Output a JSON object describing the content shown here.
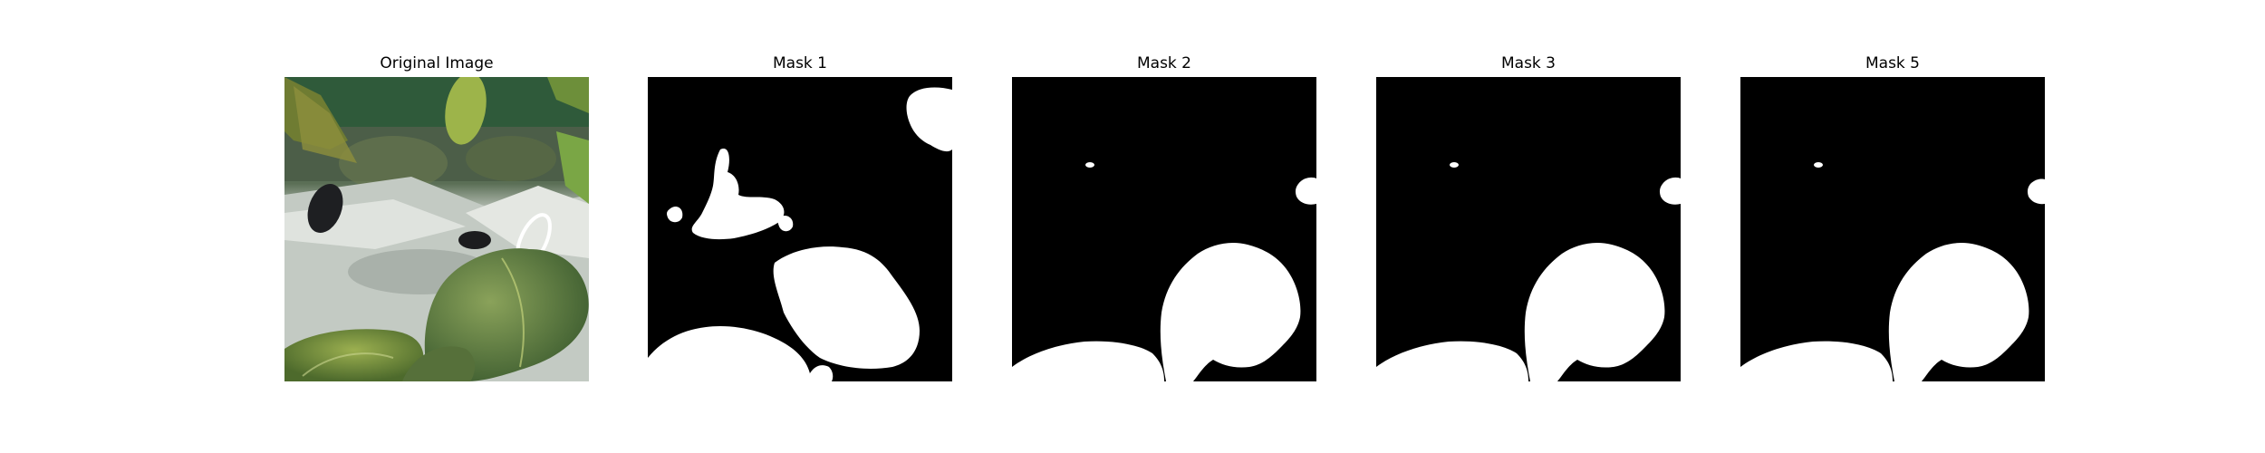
{
  "panels": [
    {
      "title": "Original Image"
    },
    {
      "title": "Mask 1"
    },
    {
      "title": "Mask 2"
    },
    {
      "title": "Mask 3"
    },
    {
      "title": "Mask 5"
    }
  ],
  "colors": {
    "background": "#ffffff",
    "mask_fill": "#000000",
    "mask_foreground": "#ffffff"
  }
}
